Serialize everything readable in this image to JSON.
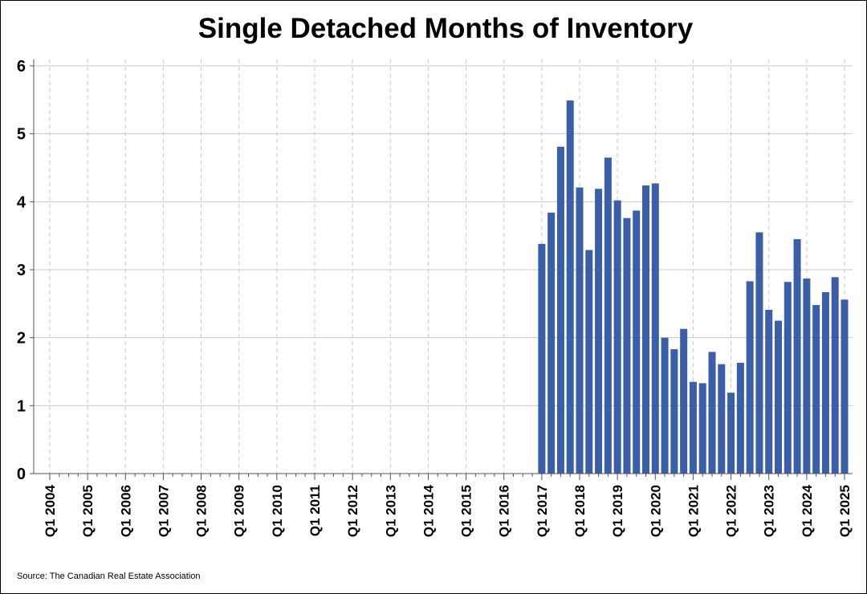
{
  "chart_data": {
    "type": "bar",
    "title": "Single Detached Months of Inventory",
    "xlabel": "",
    "ylabel": "",
    "source": "Source: The Canadian Real Estate Association",
    "ylim": [
      0,
      6
    ],
    "yticks": [
      0,
      1,
      2,
      3,
      4,
      5,
      6
    ],
    "xlim": [
      "Q1 2004",
      "Q1 2025"
    ],
    "xtick_labels": [
      "Q1 2004",
      "Q1 2005",
      "Q1 2006",
      "Q1 2007",
      "Q1 2008",
      "Q1 2009",
      "Q1 2010",
      "Q1 2011",
      "Q1 2012",
      "Q1 2013",
      "Q1 2014",
      "Q1 2015",
      "Q1 2016",
      "Q1 2017",
      "Q1 2018",
      "Q1 2019",
      "Q1 2020",
      "Q1 2021",
      "Q1 2022",
      "Q1 2023",
      "Q1 2024",
      "Q1 2025"
    ],
    "grid": {
      "horizontal": true,
      "vertical": "dashed"
    },
    "bar_color": "#3a5ea8",
    "categories": [
      "Q1 2017",
      "Q2 2017",
      "Q3 2017",
      "Q4 2017",
      "Q1 2018",
      "Q2 2018",
      "Q3 2018",
      "Q4 2018",
      "Q1 2019",
      "Q2 2019",
      "Q3 2019",
      "Q4 2019",
      "Q1 2020",
      "Q2 2020",
      "Q3 2020",
      "Q4 2020",
      "Q1 2021",
      "Q2 2021",
      "Q3 2021",
      "Q4 2021",
      "Q1 2022",
      "Q2 2022",
      "Q3 2022",
      "Q4 2022",
      "Q1 2023",
      "Q2 2023",
      "Q3 2023",
      "Q4 2023",
      "Q1 2024",
      "Q2 2024",
      "Q3 2024",
      "Q4 2024",
      "Q1 2025"
    ],
    "values": [
      3.38,
      3.84,
      4.81,
      5.49,
      4.21,
      3.29,
      4.19,
      4.65,
      4.02,
      3.76,
      3.87,
      4.24,
      4.27,
      2.0,
      1.83,
      2.13,
      1.35,
      1.33,
      1.79,
      1.61,
      1.19,
      1.63,
      2.83,
      3.55,
      2.41,
      2.25,
      2.82,
      3.45,
      2.87,
      2.48,
      2.67,
      2.89,
      2.56
    ]
  }
}
